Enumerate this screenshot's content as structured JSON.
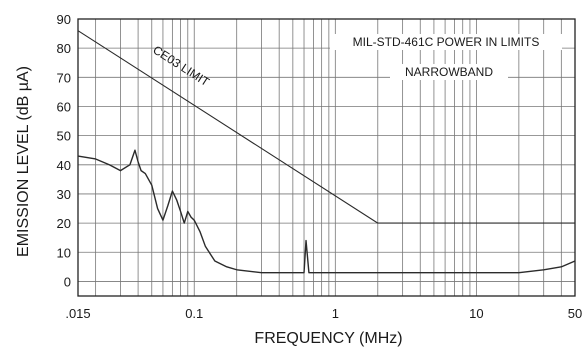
{
  "chart_data": {
    "type": "line",
    "xlabel": "FREQUENCY (MHz)",
    "ylabel": "EMISSION LEVEL (dB µA)",
    "x_scale": "log",
    "xlim": [
      0.015,
      50
    ],
    "ylim": [
      -5,
      90
    ],
    "grid": true,
    "x_ticks": [
      {
        "value": 0.015,
        "label": ".015"
      },
      {
        "value": 0.1,
        "label": "0.1"
      },
      {
        "value": 1,
        "label": "1"
      },
      {
        "value": 10,
        "label": "10"
      },
      {
        "value": 50,
        "label": "50"
      }
    ],
    "y_ticks": [
      0,
      10,
      20,
      30,
      40,
      50,
      60,
      70,
      80,
      90
    ],
    "annotations": {
      "limit_label": "CE03 LIMIT",
      "box_line1": "MIL-STD-461C POWER IN LIMITS",
      "box_line2": "NARROWBAND"
    },
    "series": [
      {
        "id": "ce03_limit",
        "x": [
          0.015,
          2,
          50
        ],
        "y": [
          86,
          20,
          20
        ]
      },
      {
        "id": "emission",
        "x": [
          0.015,
          0.02,
          0.025,
          0.03,
          0.035,
          0.038,
          0.04,
          0.042,
          0.045,
          0.05,
          0.055,
          0.06,
          0.065,
          0.07,
          0.075,
          0.08,
          0.085,
          0.09,
          0.095,
          0.1,
          0.11,
          0.12,
          0.14,
          0.17,
          0.2,
          0.3,
          0.5,
          0.6,
          0.62,
          0.65,
          1,
          2,
          5,
          10,
          20,
          30,
          40,
          50
        ],
        "y": [
          43,
          42,
          40,
          38,
          40,
          45,
          41,
          38,
          37,
          33,
          25,
          21,
          26,
          31,
          28,
          24,
          20,
          24,
          22,
          21,
          17,
          12,
          7,
          5,
          4,
          3,
          3,
          3,
          14,
          3,
          3,
          3,
          3,
          3,
          3,
          4,
          5,
          7
        ]
      }
    ],
    "colors": {
      "line": "#2b2b2b",
      "grid": "#777777",
      "frame": "#222222"
    }
  }
}
